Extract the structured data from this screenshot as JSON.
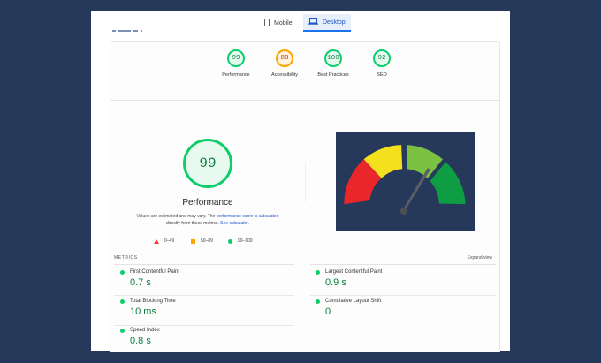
{
  "tabs": [
    {
      "label": "Mobile",
      "icon": "phone-icon",
      "active": false
    },
    {
      "label": "Desktop",
      "icon": "laptop-icon",
      "active": true
    }
  ],
  "categories": [
    {
      "score": "99",
      "label": "Performance",
      "status": "good"
    },
    {
      "score": "88",
      "label": "Accessibility",
      "status": "average"
    },
    {
      "score": "100",
      "label": "Best Practices",
      "status": "good"
    },
    {
      "score": "92",
      "label": "SEO",
      "status": "good"
    }
  ],
  "main": {
    "score": "99",
    "title": "Performance",
    "note_prefix": "Values are estimated and may vary. The ",
    "note_link1": "performance score is calculated",
    "note_mid": " directly from these metrics. ",
    "note_link2": "See calculator.",
    "legend": {
      "fail": "0–49",
      "average": "50–89",
      "pass": "90–100"
    }
  },
  "screenshot": {
    "background": "#27395a",
    "segment_colors": [
      "#e9262a",
      "#f4e01c",
      "#7cc242",
      "#0f9d43"
    ],
    "needle_value": "99"
  },
  "metrics": {
    "heading": "METRICS",
    "expand_label": "Expand view",
    "items": [
      {
        "name": "First Contentful Paint",
        "value": "0.7 s"
      },
      {
        "name": "Largest Contentful Paint",
        "value": "0.9 s"
      },
      {
        "name": "Total Blocking Time",
        "value": "10 ms"
      },
      {
        "name": "Cumulative Layout Shift",
        "value": "0"
      },
      {
        "name": "Speed Index",
        "value": "0.8 s"
      }
    ]
  },
  "colors": {
    "pass": "#0cce6b",
    "average": "#ffa400",
    "fail": "#ff3333",
    "link": "#1a56c4"
  }
}
